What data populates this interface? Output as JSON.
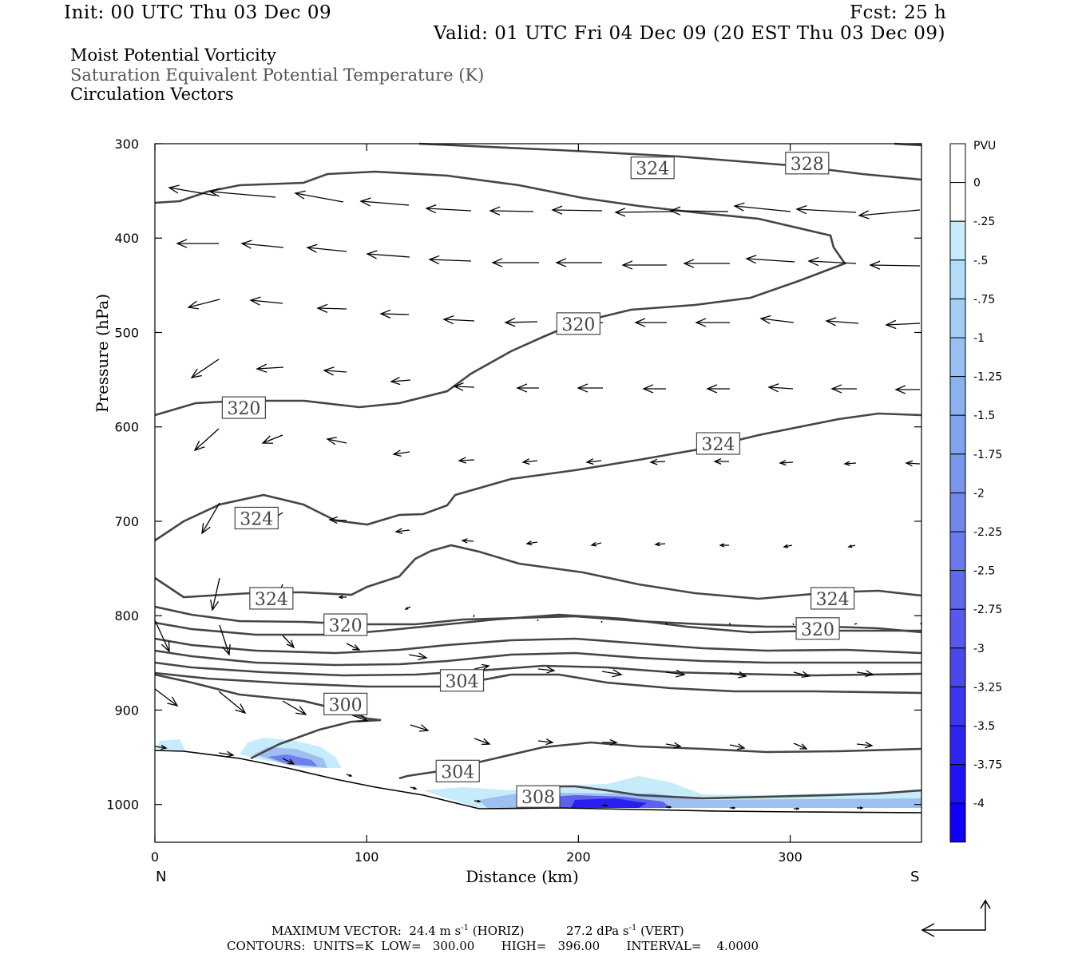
{
  "header": {
    "init": "Init: 00 UTC Thu 03 Dec 09",
    "fcst": "Fcst:   25 h",
    "valid": "Valid: 01 UTC Fri 04 Dec 09 (20 EST Thu 03 Dec 09)"
  },
  "legend_titles": [
    "Moist Potential Vorticity",
    "Saturation Equivalent Potential Temperature (K)",
    "Circulation Vectors"
  ],
  "chart_data": {
    "type": "cross-section",
    "xlabel": "Distance (km)",
    "ylabel": "Pressure (hPa)",
    "xlim": [
      0,
      362
    ],
    "ylim": [
      1040,
      300
    ],
    "x_ticks": [
      0,
      100,
      200,
      300
    ],
    "y_ticks": [
      300,
      400,
      500,
      600,
      700,
      800,
      900,
      1000
    ],
    "x_end_labels": {
      "left": "N",
      "right": "S"
    },
    "colorbar": {
      "unit": "PVU",
      "labels": [
        "0",
        "-.25",
        "-.5",
        "-.75",
        "-1",
        "-1.25",
        "-1.5",
        "-1.75",
        "-2",
        "-2.25",
        "-2.5",
        "-2.75",
        "-3",
        "-3.25",
        "-3.5",
        "-3.75",
        "-4"
      ],
      "colors": [
        "#ffffff",
        "#ffffff",
        "#c6ebfb",
        "#b2dcf8",
        "#a2cdf5",
        "#96bff2",
        "#8ab2f0",
        "#80a4ee",
        "#7896ec",
        "#7088eb",
        "#6879ea",
        "#5f69ea",
        "#5659eb",
        "#4a48ed",
        "#3d36ef",
        "#2e24f2",
        "#1f12f6",
        "#0f00fa"
      ]
    },
    "contour_labels": [
      {
        "text": "324",
        "x": 235,
        "p": 326
      },
      {
        "text": "328",
        "x": 308,
        "p": 321
      },
      {
        "text": "320",
        "x": 200,
        "p": 491
      },
      {
        "text": "320",
        "x": 42,
        "p": 580
      },
      {
        "text": "324",
        "x": 266,
        "p": 618
      },
      {
        "text": "324",
        "x": 48,
        "p": 697
      },
      {
        "text": "324",
        "x": 55,
        "p": 782
      },
      {
        "text": "324",
        "x": 320,
        "p": 782
      },
      {
        "text": "320",
        "x": 90,
        "p": 810
      },
      {
        "text": "320",
        "x": 313,
        "p": 814
      },
      {
        "text": "304",
        "x": 145,
        "p": 869
      },
      {
        "text": "300",
        "x": 90,
        "p": 894
      },
      {
        "text": "304",
        "x": 143,
        "p": 965
      },
      {
        "text": "308",
        "x": 181,
        "p": 992
      }
    ],
    "contour_interval": 4.0,
    "contour_low": 300.0,
    "contour_high": 396.0
  },
  "footer": {
    "max_vector_label": "MAXIMUM VECTOR:",
    "max_horiz": "24.4 m s",
    "horiz_tag": "(HORIZ)",
    "max_vert": "27.2 dPa s",
    "vert_tag": "(VERT)",
    "exp": "-1",
    "contours_line": "CONTOURS:  UNITS=K  LOW=   300.00       HIGH=   396.00       INTERVAL=    4.0000"
  }
}
